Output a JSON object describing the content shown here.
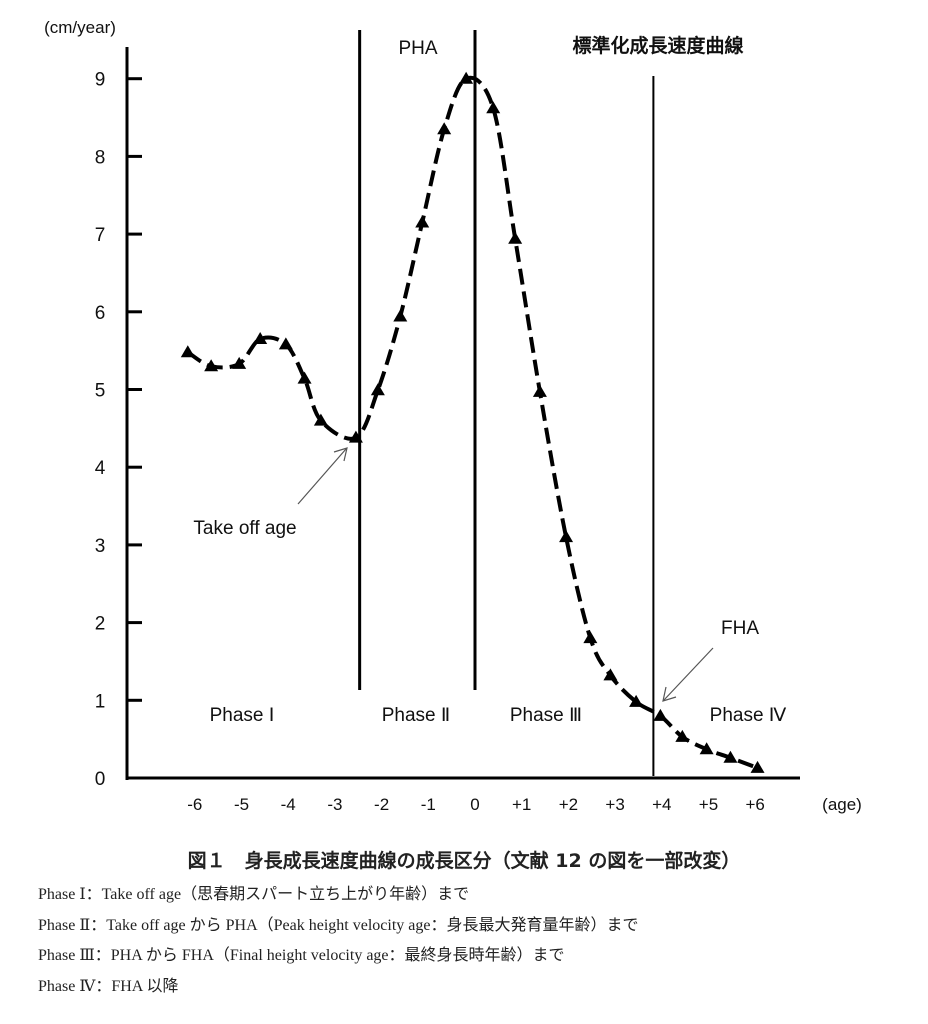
{
  "chart_data": {
    "type": "line",
    "title": "標準化成長速度曲線",
    "ylabel": "(cm/year)",
    "xlabel": "(age)",
    "ylim": [
      0,
      9
    ],
    "xlim": [
      -7,
      7
    ],
    "yticks": [
      "0",
      "1",
      "2",
      "3",
      "4",
      "5",
      "6",
      "7",
      "8",
      "9"
    ],
    "yticks_values": [
      0,
      1,
      2,
      3,
      4,
      5,
      6,
      7,
      8,
      9
    ],
    "xticks": [
      "-6",
      "-5",
      "-4",
      "-3",
      "-2",
      "-1",
      "0",
      "+1",
      "+2",
      "+3",
      "+4",
      "+5",
      "+6"
    ],
    "xticks_values": [
      -6,
      -5,
      -4,
      -3,
      -2,
      -1,
      0,
      1,
      2,
      3,
      4,
      5,
      6
    ],
    "grid": false,
    "series": [
      {
        "name": "growth velocity",
        "marker": "triangle",
        "style": "dashed",
        "x": [
          -6.15,
          -5.65,
          -5.05,
          -4.6,
          -4.05,
          -3.65,
          -3.3,
          -2.55,
          -2.08,
          -1.6,
          -1.13,
          -0.66,
          -0.19,
          0.39,
          0.86,
          1.39,
          1.95,
          2.47,
          2.9,
          3.45,
          3.97,
          4.44,
          4.96,
          5.47,
          6.05
        ],
        "y": [
          5.48,
          5.3,
          5.33,
          5.65,
          5.58,
          5.14,
          4.6,
          4.38,
          4.99,
          5.94,
          7.15,
          8.35,
          9.0,
          8.62,
          6.94,
          4.97,
          3.1,
          1.8,
          1.32,
          0.98,
          0.8,
          0.53,
          0.37,
          0.26,
          0.13
        ]
      }
    ],
    "vertical_lines": [
      {
        "x": -2.47,
        "label": ""
      },
      {
        "x": 0,
        "label": "PHA"
      },
      {
        "x": 3.82,
        "label": ""
      }
    ],
    "phases": [
      "Phase Ⅰ",
      "Phase Ⅱ",
      "Phase Ⅲ",
      "Phase Ⅳ"
    ],
    "annotations": [
      {
        "text": "Take off age",
        "points_to": [
          -2.55,
          4.38
        ]
      },
      {
        "text": "FHA",
        "points_to": [
          3.97,
          0.8
        ]
      }
    ]
  },
  "caption": "図１　身長成長速度曲線の成長区分（文献 12 の図を一部改変）",
  "notes": [
    "Phase Ⅰ：Take off age（思春期スパート立ち上がり年齢）まで",
    "Phase Ⅱ：Take off age から PHA（Peak height velocity age：身長最大発育量年齢）まで",
    "Phase Ⅲ：PHA から FHA（Final height velocity age：最終身長時年齢）まで",
    "Phase Ⅳ：FHA 以降"
  ]
}
